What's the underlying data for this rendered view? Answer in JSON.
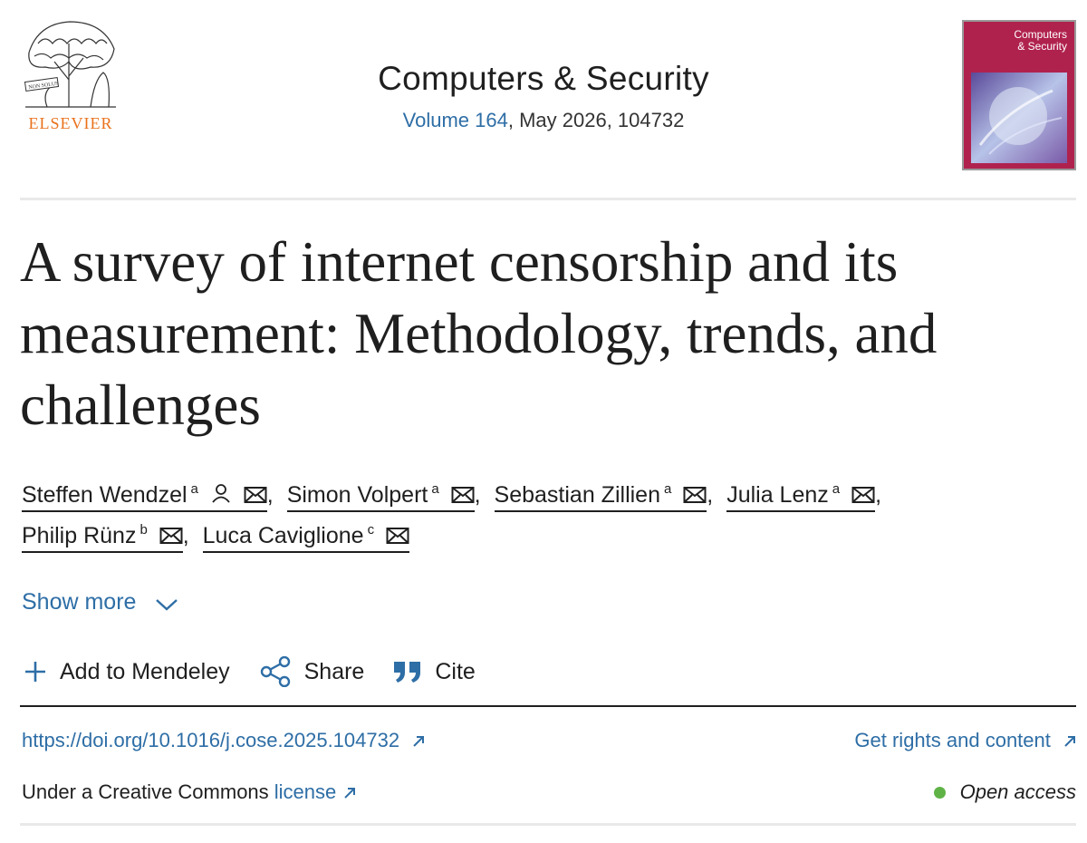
{
  "header": {
    "publisher_logo_text": "ELSEVIER",
    "journal_title": "Computers & Security",
    "volume_link": "Volume 164",
    "issue_info": ", May 2026, 104732",
    "cover_title_line1": "Computers",
    "cover_title_line2": "& Security"
  },
  "article": {
    "title": "A survey of internet censorship and its measurement: Methodology, trends, and challenges"
  },
  "authors": [
    {
      "name": "Steffen Wendzel",
      "aff": "a",
      "corresponding": true
    },
    {
      "name": "Simon Volpert",
      "aff": "a",
      "corresponding": false
    },
    {
      "name": "Sebastian Zillien",
      "aff": "a",
      "corresponding": false
    },
    {
      "name": "Julia Lenz",
      "aff": "a",
      "corresponding": false
    },
    {
      "name": "Philip Rünz",
      "aff": "b",
      "corresponding": false
    },
    {
      "name": "Luca Caviglione",
      "aff": "c",
      "corresponding": false
    }
  ],
  "author_separator": ",",
  "show_more_label": "Show more",
  "actions": {
    "mendeley_label": "Add to Mendeley",
    "share_label": "Share",
    "cite_label": "Cite"
  },
  "links": {
    "doi": "https://doi.org/10.1016/j.cose.2025.104732",
    "rights": "Get rights and content",
    "license_prefix": "Under a Creative Commons ",
    "license_link": "license",
    "open_access": "Open access"
  },
  "colors": {
    "link": "#2e6ea6",
    "elsevier_orange": "#e9711c",
    "open_access_dot": "#5fb346",
    "cover": "#b0224e"
  },
  "icons": [
    "elsevier-tree-logo",
    "person-icon",
    "mail-icon",
    "chevron-down-icon",
    "plus-icon",
    "share-icon",
    "quote-icon",
    "external-link-icon"
  ]
}
